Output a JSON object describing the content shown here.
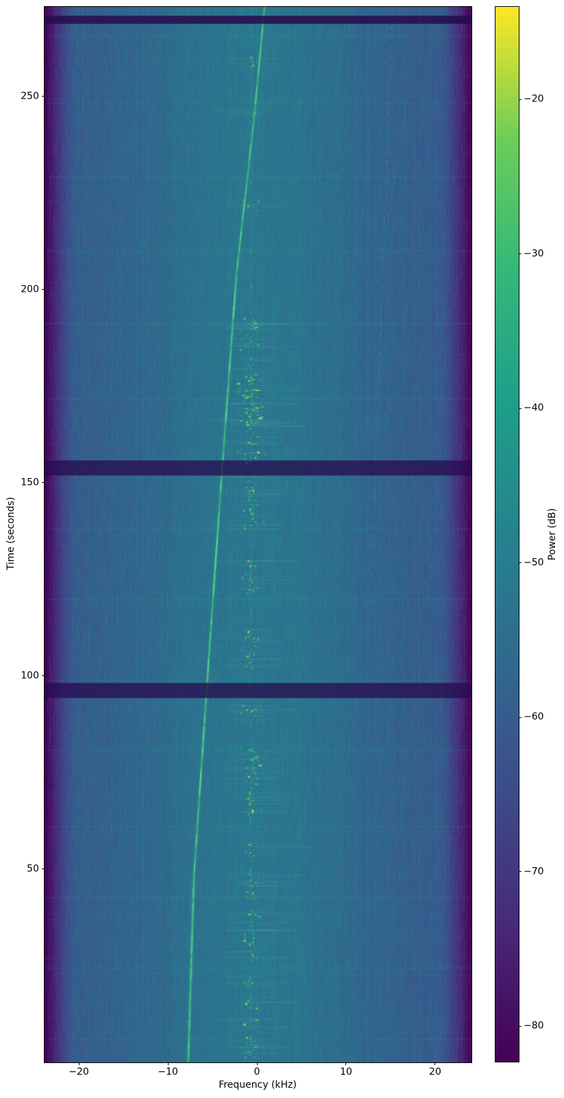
{
  "figure": {
    "background_color": "#ffffff",
    "text_color": "#000000"
  },
  "chart_data": {
    "type": "heatmap",
    "title": "",
    "xlabel": "Frequency (kHz)",
    "ylabel": "Time (seconds)",
    "x_range_khz": [
      -23.85,
      24.08
    ],
    "x_ticks_khz": [
      -20,
      -10,
      0,
      10,
      20
    ],
    "t_range_s": [
      0,
      273.2
    ],
    "t_ticks_s": [
      50,
      100,
      150,
      200,
      250
    ],
    "grid": false,
    "legend": "none",
    "colorbar": {
      "label": "Power (dB)",
      "colormap": "viridis",
      "vmax_db": -14.0,
      "vmin_db": -82.3,
      "ticks_db": [
        -20,
        -30,
        -40,
        -50,
        -60,
        -70,
        -80
      ]
    },
    "background_model": {
      "noise_floor_db": -60.6,
      "center_bump_db": 8.8,
      "bump_center_khz": -0.5,
      "bump_sigma_khz": 10.0,
      "edge_rolloff_db": -23,
      "edge_start_khz": 20.4,
      "pixel_noise_db": 3.1
    },
    "dropout_bands_s": [
      [
        268.8,
        270.9
      ],
      [
        151.9,
        155.8
      ],
      [
        94.3,
        98.2
      ]
    ],
    "scan_lines_s": [
      265.8,
      248.4,
      229.2,
      210.0,
      191.3,
      171.8,
      138.1,
      119.8,
      98.9,
      80.8,
      61.0,
      42.7,
      24.5,
      6.0
    ],
    "drifting_carrier": {
      "points_t_f": [
        [
          273.2,
          0.85
        ],
        [
          244.7,
          -0.31
        ],
        [
          203.9,
          -2.31
        ],
        [
          150.8,
          -4.0
        ],
        [
          97.6,
          -5.62
        ],
        [
          48.0,
          -7.08
        ],
        [
          0,
          -7.72
        ]
      ],
      "color_hint": "#3ec184"
    },
    "fixed_carrier_khz": -0.7,
    "secondary_trace": {
      "points_t_f": [
        [
          273.2,
          15.2
        ],
        [
          115,
          12.7
        ]
      ]
    },
    "burst_clusters_t_strength": [
      [
        259,
        1
      ],
      [
        246,
        1
      ],
      [
        222,
        1
      ],
      [
        191.5,
        1
      ],
      [
        190,
        2
      ],
      [
        186,
        2
      ],
      [
        181,
        1
      ],
      [
        175.7,
        3
      ],
      [
        171.2,
        3
      ],
      [
        167.7,
        3
      ],
      [
        164.2,
        2
      ],
      [
        158,
        3
      ],
      [
        149.5,
        2
      ],
      [
        144.7,
        2
      ],
      [
        140.2,
        2
      ],
      [
        127.8,
        2
      ],
      [
        123.4,
        2
      ],
      [
        110,
        2
      ],
      [
        104,
        2
      ],
      [
        90.5,
        2
      ],
      [
        79.1,
        3
      ],
      [
        74.6,
        2
      ],
      [
        70.2,
        2
      ],
      [
        65.8,
        2
      ],
      [
        55.1,
        1
      ],
      [
        48,
        1
      ],
      [
        44.5,
        2
      ],
      [
        37.4,
        2
      ],
      [
        32.1,
        2
      ],
      [
        28,
        1
      ],
      [
        21.4,
        1
      ],
      [
        15.2,
        1
      ],
      [
        9.9,
        1
      ],
      [
        5.5,
        1
      ],
      [
        2.5,
        1
      ]
    ]
  }
}
